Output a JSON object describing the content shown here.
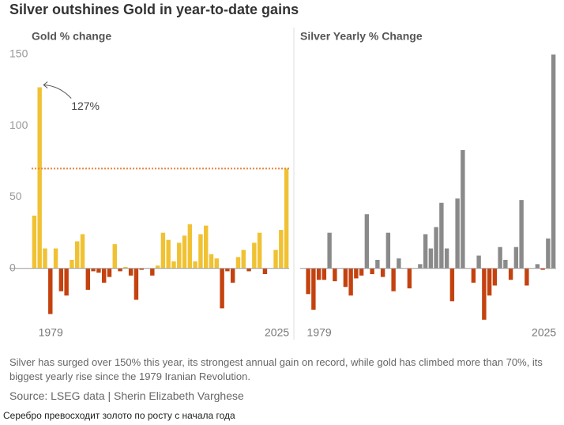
{
  "title": "Silver outshines Gold in year-to-date gains",
  "caption": "Silver has surged over 150% this year, its strongest annual gain on record, while gold has climbed more than 70%, its biggest yearly rise since the 1979 Iranian Revolution.",
  "source": "Source: LSEG data | Sherin Elizabeth Varghese",
  "footer": "Серебро превосходит золото по росту с начала года",
  "chart_data": [
    {
      "type": "bar",
      "title": "Gold % change",
      "categories": [
        null,
        "1979",
        null,
        null,
        null,
        null,
        null,
        null,
        null,
        null,
        null,
        null,
        null,
        null,
        null,
        null,
        null,
        null,
        null,
        null,
        null,
        null,
        null,
        null,
        null,
        null,
        null,
        null,
        null,
        null,
        null,
        null,
        null,
        null,
        null,
        null,
        null,
        null,
        null,
        null,
        null,
        null,
        null,
        null,
        null,
        null,
        null,
        "2025"
      ],
      "values": [
        37,
        127,
        14,
        -32,
        14,
        -16,
        -19,
        6,
        19,
        24,
        -15,
        -2,
        -3,
        -10,
        -6,
        17,
        -2,
        1,
        -5,
        -22,
        -1,
        0,
        -5,
        2,
        25,
        20,
        5,
        18,
        23,
        31,
        5,
        24,
        30,
        10,
        7,
        -28,
        -2,
        -10,
        8,
        13,
        -2,
        18,
        25,
        -4,
        0,
        13,
        27,
        70
      ],
      "positive_color": "#f0c233",
      "negative_color": "#c4420f",
      "ylim": [
        -40,
        150
      ],
      "yticks": [
        0,
        50,
        100,
        150
      ],
      "grid": false,
      "reference_line": {
        "value": 70,
        "color": "#e8843c"
      },
      "annotation": {
        "text": "127%",
        "index": 1
      }
    },
    {
      "type": "bar",
      "title": "Silver Yearly % Change",
      "categories": [
        null,
        "1979",
        null,
        null,
        null,
        null,
        null,
        null,
        null,
        null,
        null,
        null,
        null,
        null,
        null,
        null,
        null,
        null,
        null,
        null,
        null,
        null,
        null,
        null,
        null,
        null,
        null,
        null,
        null,
        null,
        null,
        null,
        null,
        null,
        null,
        null,
        null,
        null,
        null,
        null,
        null,
        null,
        null,
        null,
        null,
        null,
        null,
        "2025"
      ],
      "values": [
        0,
        -18,
        -29,
        -8,
        -8,
        25,
        -9,
        0,
        -13,
        -19,
        -7,
        -5,
        38,
        -4,
        6,
        -6,
        25,
        -16,
        7,
        0,
        -14,
        0,
        3,
        24,
        14,
        29,
        46,
        14,
        -23,
        49,
        83,
        0,
        -10,
        9,
        -36,
        -19,
        -12,
        15,
        6,
        -8,
        15,
        48,
        -12,
        0,
        3,
        -1,
        21,
        150
      ],
      "positive_color": "#8a8a8a",
      "negative_color": "#c4420f",
      "ylim": [
        -40,
        150
      ],
      "grid": false
    }
  ]
}
